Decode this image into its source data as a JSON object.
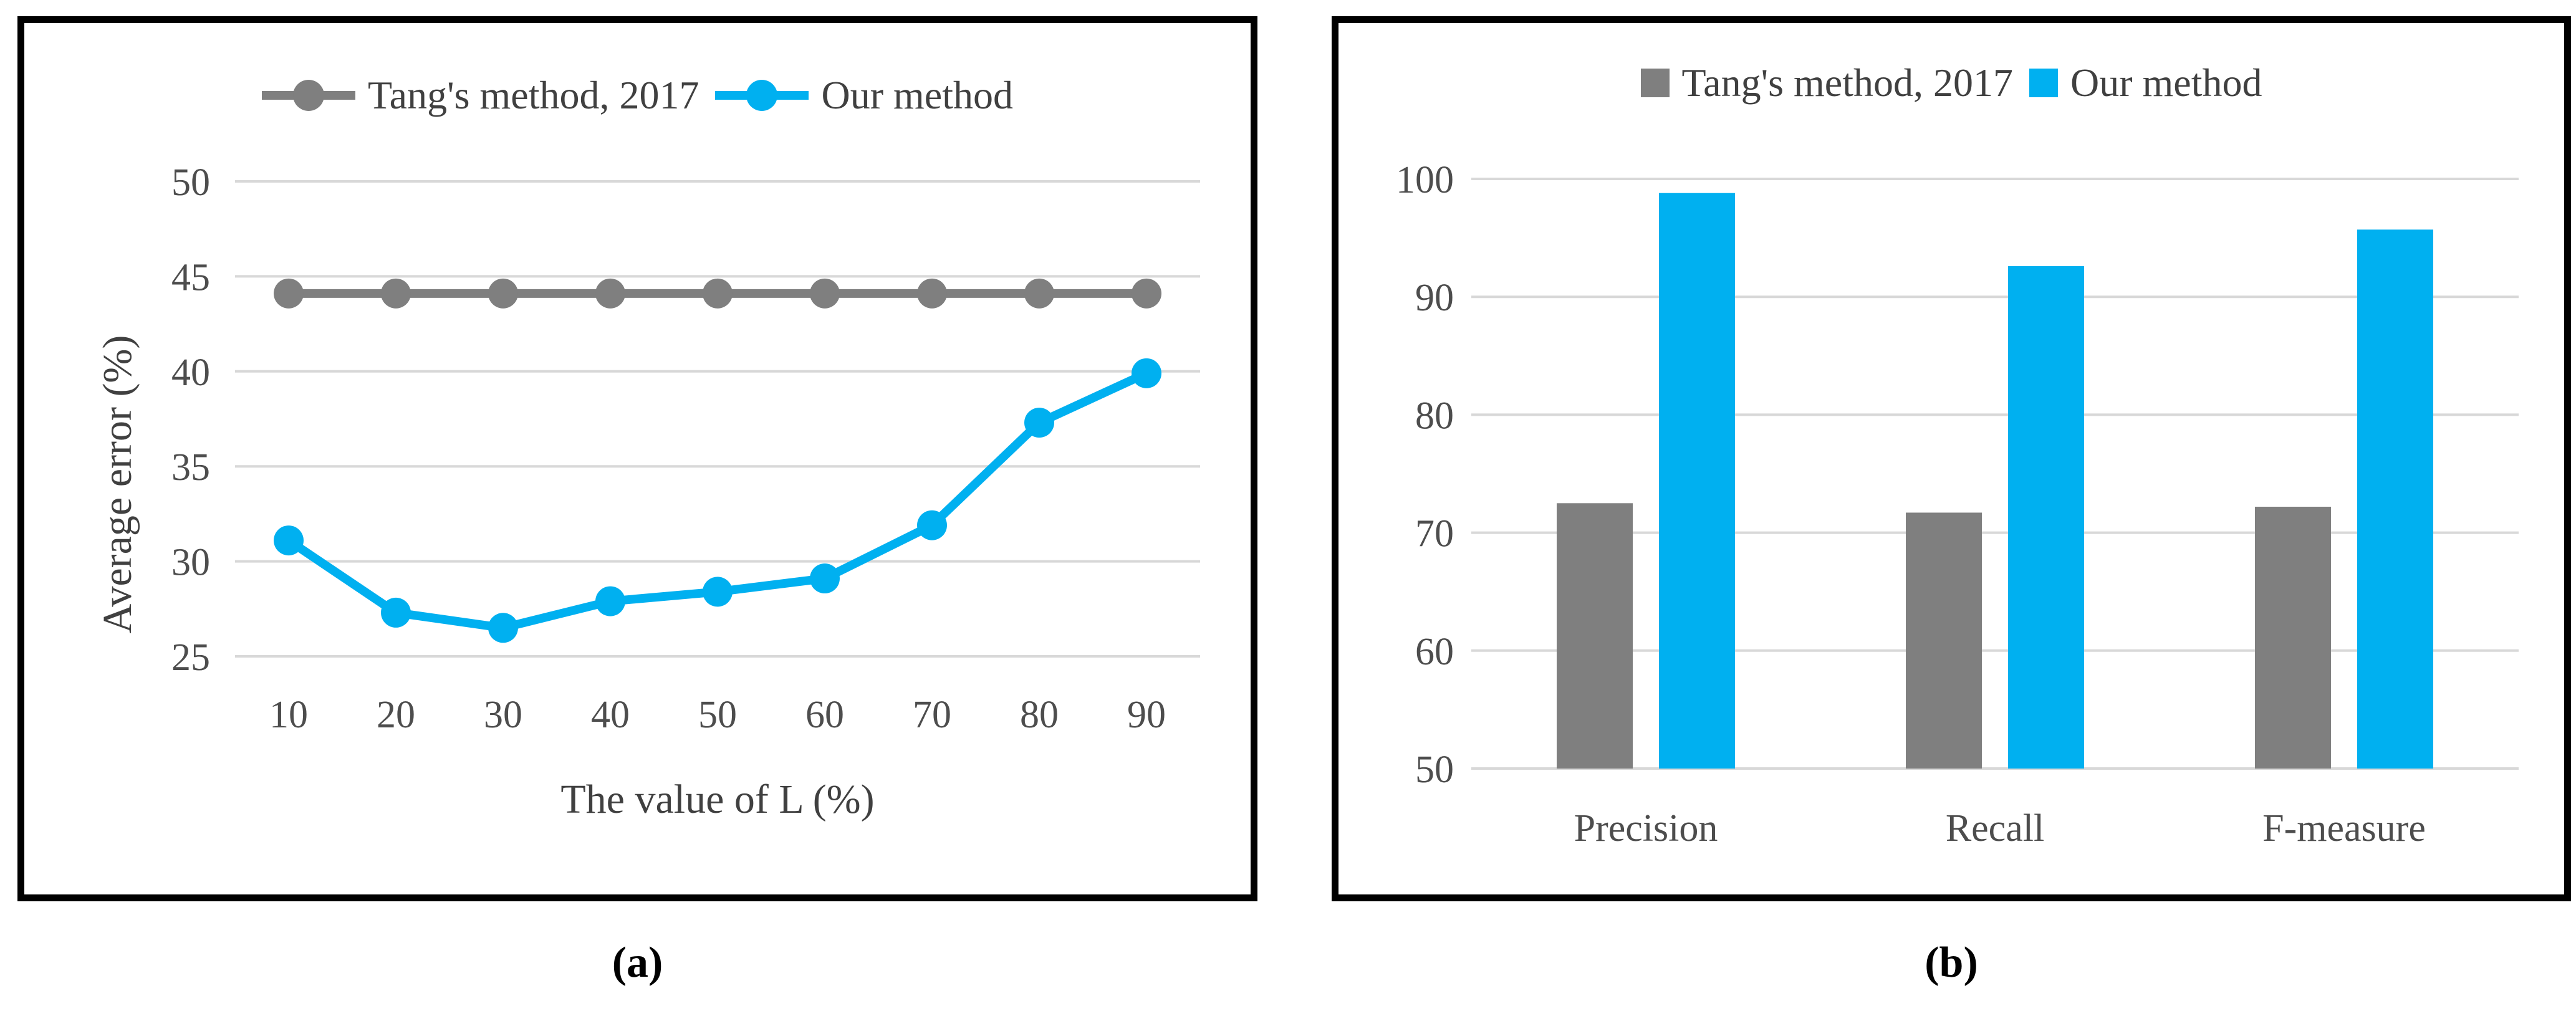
{
  "figure": {
    "caption_a": "(a)",
    "caption_b": "(b)"
  },
  "colors": {
    "accent_blue": "#00B0F0",
    "series_gray": "#7F7F7F",
    "gridline": "#D8D8D8",
    "tick_text": "#4D4D4D",
    "panel_border": "#000000"
  },
  "chart_data": [
    {
      "id": "a",
      "type": "line",
      "title": "",
      "categories": [
        10,
        20,
        30,
        40,
        50,
        60,
        70,
        80,
        90
      ],
      "series": [
        {
          "name": "Tang's method, 2017",
          "color": "#7F7F7F",
          "values": [
            44.1,
            44.1,
            44.1,
            44.1,
            44.1,
            44.1,
            44.1,
            44.1,
            44.1
          ]
        },
        {
          "name": "Our method",
          "color": "#00B0F0",
          "values": [
            31.1,
            27.3,
            26.5,
            27.9,
            28.4,
            29.1,
            31.9,
            37.3,
            39.9
          ]
        }
      ],
      "xlabel": "The value of L (%)",
      "ylabel": "Average error (%)",
      "ylim": [
        25,
        50
      ],
      "yticks": [
        25,
        30,
        35,
        40,
        45,
        50
      ],
      "grid": true,
      "legend_position": "top"
    },
    {
      "id": "b",
      "type": "bar",
      "title": "",
      "categories": [
        "Precision",
        "Recall",
        "F-measure"
      ],
      "series": [
        {
          "name": "Tang's method, 2017",
          "color": "#7F7F7F",
          "values": [
            72.5,
            71.7,
            72.2
          ]
        },
        {
          "name": "Our method",
          "color": "#00B0F0",
          "values": [
            98.8,
            92.6,
            95.7
          ]
        }
      ],
      "xlabel": "",
      "ylabel": "",
      "ylim": [
        50,
        100
      ],
      "yticks": [
        50,
        60,
        70,
        80,
        90,
        100
      ],
      "grid": true,
      "legend_position": "top"
    }
  ]
}
